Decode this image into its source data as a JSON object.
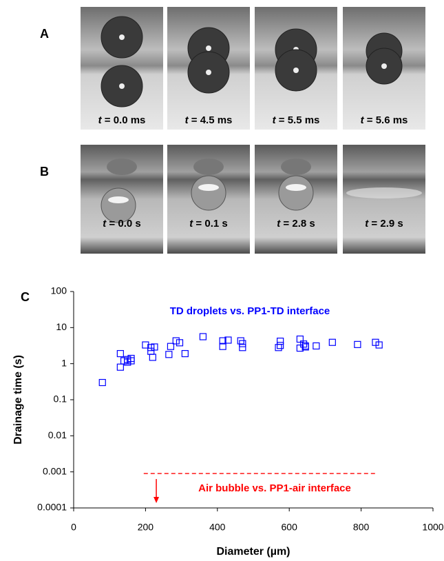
{
  "panel_a": {
    "label": "A",
    "frames": [
      {
        "var": "t",
        "rest": " = 0.0 ms"
      },
      {
        "var": "t",
        "rest": " = 4.5 ms"
      },
      {
        "var": "t",
        "rest": " = 5.5 ms"
      },
      {
        "var": "t",
        "rest": " = 5.6 ms"
      }
    ]
  },
  "panel_b": {
    "label": "B",
    "frames": [
      {
        "var": "t",
        "rest": " = 0.0 s"
      },
      {
        "var": "t",
        "rest": " = 0.1 s"
      },
      {
        "var": "t",
        "rest": " = 2.8 s"
      },
      {
        "var": "t",
        "rest": " = 2.9 s"
      }
    ]
  },
  "chart_data": {
    "type": "scatter",
    "panel_label": "C",
    "x_label": "Diameter (µm)",
    "y_label": "Drainage time (s)",
    "xlim": [
      0,
      1000
    ],
    "xticks": [
      0,
      200,
      400,
      600,
      800,
      1000
    ],
    "ylim": [
      0.0001,
      100
    ],
    "yticks": [
      0.0001,
      0.001,
      0.01,
      0.1,
      1,
      10,
      100
    ],
    "log_y": true,
    "grid": false,
    "series": [
      {
        "name": "TD droplets vs. PP1-TD interface",
        "color": "#0000ff",
        "x": [
          80,
          130,
          130,
          140,
          150,
          150,
          160,
          160,
          200,
          215,
          215,
          220,
          225,
          265,
          270,
          285,
          295,
          310,
          360,
          415,
          415,
          430,
          465,
          470,
          470,
          570,
          575,
          575,
          630,
          630,
          640,
          645,
          645,
          675,
          720,
          790,
          840,
          850
        ],
        "values": [
          0.3,
          0.8,
          1.9,
          1.2,
          1.1,
          1.3,
          1.2,
          1.4,
          3.3,
          2.8,
          2.2,
          1.5,
          2.9,
          1.8,
          3.0,
          4.3,
          3.8,
          1.9,
          5.6,
          3.0,
          4.3,
          4.5,
          4.3,
          2.8,
          3.6,
          2.8,
          3.2,
          4.2,
          4.8,
          2.7,
          3.5,
          2.9,
          3.1,
          3.1,
          3.9,
          3.4,
          3.9,
          3.3
        ]
      }
    ],
    "reference": {
      "name": "Air bubble vs. PP1-air interface",
      "color": "#ff0000",
      "y": 0.0009,
      "x": [
        195,
        845
      ],
      "arrow_x": 230
    }
  }
}
